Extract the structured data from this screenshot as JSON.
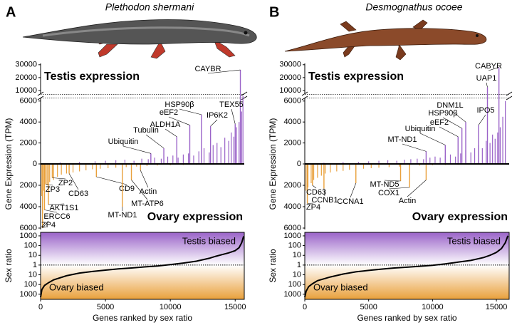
{
  "chart_data": [
    {
      "type": "bar",
      "panel": "A",
      "title": "Plethodon shermani",
      "ylabel": "Gene Expression (TPM)",
      "xlim": [
        0,
        15700
      ],
      "ylim": [
        0,
        6800
      ],
      "yticks": [
        0,
        2000,
        4000,
        6000
      ],
      "upper_ylim": [
        5000,
        31000
      ],
      "upper_yticks": [
        10000,
        20000,
        30000
      ],
      "ovary_ylim": [
        0,
        6800
      ],
      "ovary_yticks": [
        2000,
        4000,
        6000
      ],
      "series": [
        {
          "name": "Testis expression",
          "color": "#9a63c8",
          "x": [
            1500,
            3000,
            4200,
            5000,
            5800,
            6500,
            7200,
            7800,
            8300,
            8800,
            9300,
            9800,
            10200,
            10600,
            11000,
            11400,
            11800,
            12200,
            12600,
            13000,
            13300,
            13600,
            13900,
            14200,
            14500,
            14700,
            14900,
            15100,
            15300,
            15500,
            15600
          ],
          "values": [
            150,
            200,
            250,
            300,
            350,
            400,
            300,
            500,
            450,
            600,
            500,
            700,
            800,
            600,
            900,
            1000,
            800,
            1200,
            1500,
            1100,
            1800,
            2000,
            1600,
            2500,
            2200,
            3000,
            2600,
            3500,
            4000,
            5000,
            6500
          ]
        },
        {
          "name": "Ovary expression",
          "color": "#e9a03b",
          "x": [
            100,
            250,
            500,
            700,
            1000,
            1300,
            1600,
            2000,
            2500,
            3000,
            3500,
            4000,
            4600,
            5200,
            5800,
            6600,
            7400,
            8200,
            9000,
            10000,
            11000,
            12000,
            13000,
            14000
          ],
          "values": [
            3000,
            2500,
            2000,
            1700,
            1500,
            1200,
            1000,
            900,
            800,
            700,
            600,
            500,
            450,
            400,
            350,
            300,
            250,
            200,
            150,
            120,
            100,
            80,
            50,
            30
          ]
        }
      ],
      "testis_annotations": [
        {
          "text": "CAYBR",
          "x": 15400,
          "value": 26000
        },
        {
          "text": "TEX55",
          "x": 15000,
          "value": 3800
        },
        {
          "text": "IP6K2",
          "x": 13100,
          "value": 3600
        },
        {
          "text": "HSP90β",
          "x": 12400,
          "value": 4700
        },
        {
          "text": "eEF2",
          "x": 11500,
          "value": 3700
        },
        {
          "text": "ALDH1A",
          "x": 10500,
          "value": 2600
        },
        {
          "text": "Tubulin",
          "x": 9500,
          "value": 1500
        },
        {
          "text": "Ubiquitin",
          "x": 8500,
          "value": 1000
        }
      ],
      "ovary_annotations": [
        {
          "text": "ZP4",
          "x": 150,
          "value": 6000
        },
        {
          "text": "ERCC6",
          "x": 300,
          "value": 4300
        },
        {
          "text": "AKT1S1",
          "x": 600,
          "value": 3800
        },
        {
          "text": "ZP3",
          "x": 400,
          "value": 1900
        },
        {
          "text": "ZP2",
          "x": 900,
          "value": 1300
        },
        {
          "text": "CD63",
          "x": 2200,
          "value": 900
        },
        {
          "text": "CD9",
          "x": 4300,
          "value": 1200
        },
        {
          "text": "MT-ND1",
          "x": 6300,
          "value": 4000
        },
        {
          "text": "MT-ATP6",
          "x": 7000,
          "value": 1500
        },
        {
          "text": "Actin",
          "x": 7700,
          "value": 600
        }
      ]
    },
    {
      "type": "line",
      "ylabel": "Sex ratio",
      "xlabel": "Genes ranked by sex ratio",
      "log": true,
      "xlim": [
        0,
        15700
      ],
      "xticks": [
        0,
        5000,
        10000,
        15000
      ],
      "ylim": [
        0.0003,
        2300
      ],
      "yticks": [
        1000,
        100,
        10,
        1,
        {
          "value": 0.1,
          "label": "10"
        },
        {
          "value": 0.01,
          "label": "100"
        },
        {
          "value": 0.001,
          "label": "1000"
        }
      ],
      "top_label": "Testis biased",
      "bottom_label": "Ovary biased",
      "top_color": "#9a63c8",
      "bottom_color": "#e9a03b",
      "color": "#000000",
      "x": [
        0,
        100,
        300,
        600,
        1000,
        2000,
        3000,
        4000,
        5000,
        6000,
        7000,
        8000,
        9000,
        10000,
        11000,
        12000,
        13000,
        13500,
        14000,
        14500,
        15000,
        15300,
        15500,
        15650
      ],
      "values": [
        0.0005,
        0.003,
        0.008,
        0.015,
        0.03,
        0.08,
        0.15,
        0.22,
        0.3,
        0.4,
        0.5,
        0.65,
        0.8,
        1.1,
        1.6,
        2.5,
        5,
        8,
        12,
        18,
        30,
        60,
        200,
        900
      ]
    },
    {
      "type": "bar",
      "panel": "B",
      "title": "Desmognathus ocoee",
      "ylabel": "Gene Expression (TPM)",
      "xlim": [
        0,
        16000
      ],
      "ylim": [
        0,
        6800
      ],
      "yticks": [
        0,
        2000,
        4000,
        6000
      ],
      "upper_ylim": [
        5000,
        31000
      ],
      "upper_yticks": [
        10000,
        20000,
        30000
      ],
      "ovary_ylim": [
        0,
        6800
      ],
      "ovary_yticks": [
        2000,
        4000,
        6000
      ],
      "series": [
        {
          "name": "Testis expression",
          "color": "#9a63c8",
          "x": [
            1500,
            3000,
            4200,
            5000,
            5800,
            6500,
            7200,
            7800,
            8300,
            8800,
            9300,
            9800,
            10200,
            10600,
            11000,
            11400,
            11800,
            12200,
            12600,
            13000,
            13300,
            13600,
            13900,
            14200,
            14500,
            14700,
            14900,
            15100,
            15300,
            15500,
            15700
          ],
          "values": [
            120,
            180,
            200,
            250,
            300,
            350,
            300,
            400,
            450,
            500,
            450,
            600,
            700,
            600,
            800,
            900,
            700,
            1000,
            1300,
            1100,
            1500,
            1800,
            1500,
            2200,
            2000,
            2800,
            2400,
            3000,
            3500,
            4500,
            6000
          ]
        },
        {
          "name": "Ovary expression",
          "color": "#e9a03b",
          "x": [
            100,
            250,
            500,
            700,
            1000,
            1300,
            1600,
            2000,
            2500,
            3000,
            3500,
            4000,
            4600,
            5200,
            5800,
            6600,
            7400,
            8200,
            9000,
            10000,
            11000,
            12000,
            13000,
            14000
          ],
          "values": [
            2500,
            2200,
            1800,
            1500,
            1300,
            1100,
            900,
            800,
            700,
            650,
            550,
            500,
            450,
            400,
            350,
            300,
            250,
            200,
            150,
            120,
            100,
            80,
            50,
            30
          ]
        }
      ],
      "testis_annotations": [
        {
          "text": "CABYR",
          "x": 15200,
          "value": 28000
        },
        {
          "text": "UAP1",
          "x": 14300,
          "value": 12500
        },
        {
          "text": "IPO5",
          "x": 13600,
          "value": 3700
        },
        {
          "text": "DNM1L",
          "x": 12600,
          "value": 4000
        },
        {
          "text": "HSP90β",
          "x": 12300,
          "value": 3400
        },
        {
          "text": "eEF2",
          "x": 12000,
          "value": 2600
        },
        {
          "text": "Ubiquitin",
          "x": 11000,
          "value": 1800
        },
        {
          "text": "MT-ND1",
          "x": 9500,
          "value": 1200
        }
      ],
      "ovary_annotations": [
        {
          "text": "ZP4",
          "x": 200,
          "value": 3700
        },
        {
          "text": "CD63",
          "x": 600,
          "value": 2000
        },
        {
          "text": "CCNB1",
          "x": 1500,
          "value": 2300
        },
        {
          "text": "CCNA1",
          "x": 4000,
          "value": 1800
        },
        {
          "text": "MT-ND5",
          "x": 7500,
          "value": 1600
        },
        {
          "text": "COX1",
          "x": 8200,
          "value": 2200
        },
        {
          "text": "Actin",
          "x": 9500,
          "value": 1500
        }
      ]
    },
    {
      "type": "line",
      "ylabel": "Sex ratio",
      "xlabel": "Genes ranked by sex ratio",
      "log": true,
      "xlim": [
        0,
        16000
      ],
      "xticks": [
        0,
        5000,
        10000,
        15000
      ],
      "ylim": [
        0.0003,
        2300
      ],
      "yticks": [
        1000,
        100,
        10,
        1,
        {
          "value": 0.1,
          "label": "10"
        },
        {
          "value": 0.01,
          "label": "100"
        },
        {
          "value": 0.001,
          "label": "1000"
        }
      ],
      "top_label": "Testis biased",
      "bottom_label": "Ovary biased",
      "top_color": "#9a63c8",
      "bottom_color": "#e9a03b",
      "color": "#000000",
      "x": [
        0,
        100,
        300,
        600,
        1000,
        2000,
        3000,
        4000,
        5000,
        6000,
        7000,
        8000,
        9000,
        10000,
        11000,
        12000,
        13000,
        14000,
        14500,
        15000,
        15400,
        15700,
        15900
      ],
      "values": [
        0.0005,
        0.002,
        0.006,
        0.012,
        0.025,
        0.06,
        0.12,
        0.2,
        0.28,
        0.38,
        0.5,
        0.6,
        0.75,
        0.95,
        1.3,
        2,
        3,
        6,
        10,
        20,
        50,
        200,
        1000
      ]
    }
  ]
}
